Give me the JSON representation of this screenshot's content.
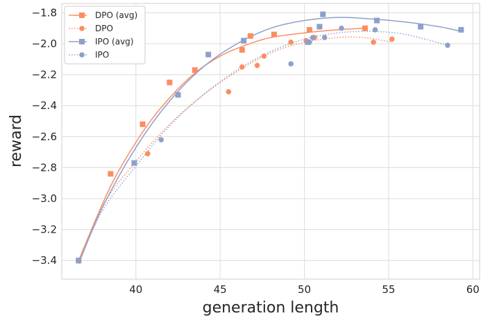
{
  "chart_data": {
    "type": "scatter",
    "xlabel": "generation length",
    "ylabel": "reward",
    "xlim": [
      35.6,
      60.4
    ],
    "ylim": [
      -3.52,
      -1.74
    ],
    "xticks": [
      40,
      45,
      50,
      55,
      60
    ],
    "xtick_labels": [
      "40",
      "45",
      "50",
      "55",
      "60"
    ],
    "yticks": [
      -3.4,
      -3.2,
      -3.0,
      -2.8,
      -2.6,
      -2.4,
      -2.2,
      -2.0,
      -1.8
    ],
    "ytick_labels": [
      "−3.4",
      "−3.2",
      "−3.0",
      "−2.8",
      "−2.6",
      "−2.4",
      "−2.2",
      "−2.0",
      "−1.8"
    ],
    "grid": true,
    "legend_position": "top-left",
    "series": [
      {
        "name": "DPO (avg)",
        "marker": "square",
        "color": "#fc8d62",
        "x": [
          36.6,
          38.5,
          40.4,
          42.0,
          43.5,
          46.3,
          46.8,
          48.2,
          50.3,
          53.6
        ],
        "y": [
          -3.4,
          -2.84,
          -2.52,
          -2.25,
          -2.17,
          -2.04,
          -1.95,
          -1.94,
          -1.91,
          -1.9
        ],
        "fit": {
          "line_style": "solid",
          "x": [
            36.6,
            38.5,
            40.4,
            42.0,
            43.5,
            45.0,
            46.5,
            48.0,
            50.0,
            52.0,
            53.6
          ],
          "y": [
            -3.4,
            -2.92,
            -2.57,
            -2.35,
            -2.19,
            -2.08,
            -2.01,
            -1.96,
            -1.93,
            -1.91,
            -1.9
          ]
        }
      },
      {
        "name": "DPO",
        "marker": "circle",
        "color": "#fc8d62",
        "x": [
          36.6,
          40.7,
          45.5,
          46.3,
          47.2,
          47.6,
          49.2,
          50.1,
          50.6,
          54.1,
          55.2
        ],
        "y": [
          -3.4,
          -2.71,
          -2.31,
          -2.15,
          -2.14,
          -2.08,
          -1.99,
          -1.98,
          -1.96,
          -1.99,
          -1.97
        ],
        "fit": {
          "line_style": "dotted",
          "x": [
            36.6,
            38.0,
            40.0,
            42.0,
            44.0,
            46.0,
            48.0,
            50.0,
            52.0,
            53.5,
            55.2
          ],
          "y": [
            -3.42,
            -3.05,
            -2.76,
            -2.52,
            -2.33,
            -2.18,
            -2.06,
            -1.99,
            -1.96,
            -1.96,
            -1.99
          ]
        }
      },
      {
        "name": "IPO (avg)",
        "marker": "square",
        "color": "#8da0cb",
        "x": [
          36.6,
          39.9,
          42.5,
          44.3,
          46.4,
          50.2,
          50.9,
          51.1,
          54.3,
          56.9,
          59.3
        ],
        "y": [
          -3.4,
          -2.77,
          -2.33,
          -2.07,
          -1.98,
          -1.99,
          -1.89,
          -1.81,
          -1.85,
          -1.89,
          -1.91
        ],
        "fit": {
          "line_style": "solid",
          "x": [
            36.6,
            38.0,
            40.0,
            42.0,
            44.0,
            46.0,
            48.0,
            50.0,
            52.0,
            54.0,
            56.0,
            58.0,
            59.3
          ],
          "y": [
            -3.42,
            -3.06,
            -2.67,
            -2.37,
            -2.15,
            -2.0,
            -1.9,
            -1.85,
            -1.83,
            -1.84,
            -1.86,
            -1.89,
            -1.92
          ]
        }
      },
      {
        "name": "IPO",
        "marker": "circle",
        "color": "#8da0cb",
        "x": [
          36.6,
          41.5,
          49.2,
          50.3,
          50.5,
          51.2,
          52.2,
          54.2,
          58.5
        ],
        "y": [
          -3.4,
          -2.62,
          -2.13,
          -1.99,
          -1.96,
          -1.96,
          -1.9,
          -1.91,
          -2.01
        ],
        "fit": {
          "line_style": "dotted",
          "x": [
            36.6,
            38.0,
            40.0,
            42.0,
            44.0,
            46.0,
            48.0,
            50.0,
            52.0,
            54.0,
            56.0,
            58.5
          ],
          "y": [
            -3.42,
            -3.08,
            -2.79,
            -2.53,
            -2.33,
            -2.17,
            -2.05,
            -1.97,
            -1.93,
            -1.92,
            -1.94,
            -2.01
          ]
        }
      }
    ]
  }
}
